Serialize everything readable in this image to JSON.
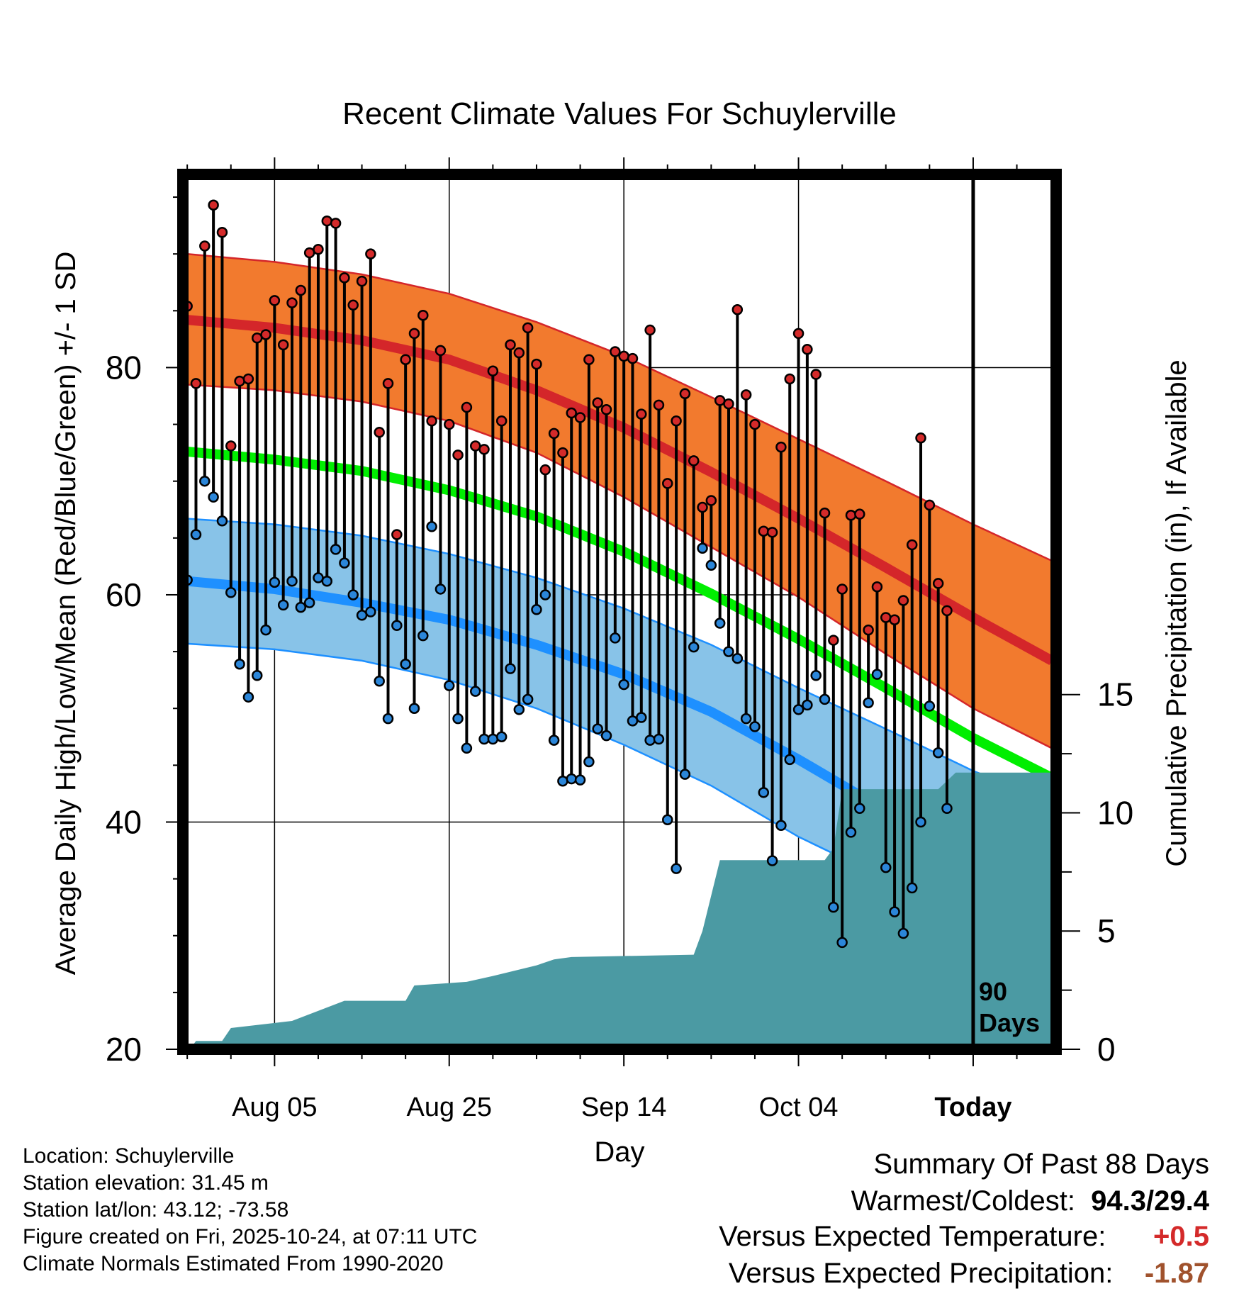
{
  "chart_data": {
    "type": "line",
    "title": "Recent Climate Values For Schuylerville",
    "xlabel": "Day",
    "ylabel": "Average Daily High/Low/Mean (Red/Blue/Green) +/- 1 SD",
    "y2label": "Cumulative Precipitation (in), If Available",
    "ylim": [
      20,
      97
    ],
    "y2lim": [
      0,
      37
    ],
    "xlim": [
      -0.5,
      99.5
    ],
    "y_ticks": [
      "20",
      "40",
      "60",
      "80"
    ],
    "y2_ticks": [
      "0",
      "5",
      "10",
      "15"
    ],
    "x_ticks": [
      {
        "label": "Aug 05",
        "day": 10
      },
      {
        "label": "Aug 25",
        "day": 30
      },
      {
        "label": "Sep 14",
        "day": 50
      },
      {
        "label": "Oct 04",
        "day": 70
      },
      {
        "label": "Today",
        "day": 90
      }
    ],
    "today_marker": "90\nDays",
    "normals": {
      "days": [
        0,
        10,
        20,
        30,
        40,
        50,
        60,
        70,
        80,
        90,
        99
      ],
      "high_mean": [
        84.2,
        83.5,
        82.4,
        80.7,
        78.0,
        74.7,
        70.8,
        66.7,
        62.4,
        58.0,
        54.2
      ],
      "high_upper": [
        90.0,
        89.3,
        88.2,
        86.5,
        84.0,
        81.0,
        77.4,
        73.7,
        70.0,
        66.2,
        63.0
      ],
      "high_lower": [
        78.5,
        78.0,
        77.0,
        75.3,
        72.5,
        68.6,
        64.2,
        59.8,
        54.8,
        50.0,
        46.5
      ],
      "avg_mean": [
        72.6,
        71.9,
        70.9,
        69.2,
        66.9,
        63.8,
        60.1,
        56.1,
        51.8,
        47.4,
        43.9
      ],
      "low_mean": [
        61.2,
        60.5,
        59.3,
        57.8,
        55.6,
        53.0,
        49.7,
        45.5,
        41.0,
        36.5,
        33.0
      ],
      "low_upper": [
        66.7,
        66.2,
        65.2,
        63.6,
        61.5,
        58.8,
        55.6,
        51.8,
        48.2,
        44.5,
        41.8
      ],
      "low_lower": [
        55.7,
        55.2,
        54.2,
        52.5,
        50.0,
        46.8,
        43.2,
        38.7,
        35.0,
        31.0,
        28.5
      ]
    },
    "observed": {
      "high": [
        85.4,
        78.6,
        90.7,
        94.3,
        91.9,
        73.1,
        78.8,
        79.0,
        82.6,
        82.9,
        85.9,
        82.0,
        85.7,
        86.8,
        90.1,
        90.4,
        92.9,
        92.7,
        87.9,
        85.5,
        87.6,
        90.0,
        74.3,
        78.6,
        65.3,
        80.7,
        83.0,
        84.6,
        75.3,
        81.5,
        75.0,
        72.3,
        76.5,
        73.1,
        72.8,
        79.7,
        75.3,
        82.0,
        81.3,
        83.5,
        80.3,
        71.0,
        74.2,
        72.5,
        76.0,
        75.6,
        80.7,
        76.9,
        76.3,
        81.4,
        81.0,
        80.8,
        75.9,
        83.3,
        76.7,
        69.8,
        75.3,
        77.7,
        71.8,
        67.7,
        68.3,
        77.1,
        76.8,
        85.1,
        77.6,
        75.0,
        65.6,
        65.5,
        73.0,
        79.0,
        83.0,
        81.6,
        79.4,
        67.2,
        56.0,
        60.5,
        67.0,
        67.1,
        56.9,
        60.7,
        58.0,
        57.8,
        59.5,
        64.4,
        73.8,
        67.9,
        61.0,
        58.6
      ],
      "low": [
        61.3,
        65.3,
        70.0,
        68.6,
        66.5,
        60.2,
        53.9,
        51.0,
        52.9,
        56.9,
        61.1,
        59.1,
        61.2,
        58.9,
        59.3,
        61.5,
        61.2,
        64.0,
        62.8,
        60.0,
        58.2,
        58.5,
        52.4,
        49.1,
        57.3,
        53.9,
        50.0,
        56.4,
        66.0,
        60.5,
        52.0,
        49.1,
        46.5,
        51.5,
        47.3,
        47.3,
        47.5,
        53.5,
        49.9,
        50.8,
        58.7,
        60.0,
        47.2,
        43.6,
        43.8,
        43.7,
        45.3,
        48.2,
        47.6,
        56.2,
        52.1,
        48.9,
        49.2,
        47.2,
        47.3,
        40.2,
        35.9,
        44.2,
        55.4,
        64.1,
        62.6,
        57.5,
        55.0,
        54.4,
        49.1,
        48.4,
        42.6,
        36.6,
        39.7,
        45.5,
        49.9,
        50.3,
        52.9,
        50.8,
        32.5,
        29.4,
        39.1,
        41.2,
        50.5,
        53.0,
        36.0,
        32.1,
        30.2,
        34.2,
        40.0,
        50.2,
        46.1,
        41.2
      ]
    },
    "precip": {
      "x": [
        0.5,
        1,
        4,
        5,
        12,
        18,
        25,
        26,
        32,
        35,
        40,
        42,
        44,
        58,
        59,
        61,
        62,
        73,
        74,
        75,
        86,
        88,
        99.5
      ],
      "y": [
        0.1,
        0.35,
        0.35,
        0.9,
        1.2,
        2.05,
        2.05,
        2.7,
        2.85,
        3.1,
        3.55,
        3.8,
        3.9,
        4.0,
        5.0,
        8.0,
        8.0,
        8.0,
        8.5,
        11.0,
        11.0,
        11.7,
        11.7
      ]
    },
    "colors": {
      "high_band": "#f27a2e",
      "high_line": "#d4262a",
      "avg_line": "#00ee00",
      "low_band": "#88c3e8",
      "low_line": "#1e90ff",
      "precip_fill": "#4b9aa3",
      "high_marker": "#d42a2a",
      "low_marker": "#2b86d9"
    }
  },
  "info": {
    "location": "Location: Schuylerville",
    "elevation": "Station elevation: 31.45 m",
    "latlon": "Station lat/lon: 43.12; -73.58",
    "created": "Figure created on Fri, 2025-10-24, at 07:11 UTC",
    "normals": "Climate Normals Estimated From 1990-2020"
  },
  "summary": {
    "title": "Summary Of Past 88 Days",
    "warm_cold_label": "Warmest/Coldest:",
    "warm_cold_value": "94.3/29.4",
    "temp_label": "Versus Expected Temperature:",
    "temp_value": "+0.5",
    "precip_label": "Versus Expected Precipitation:",
    "precip_value": "-1.87"
  }
}
